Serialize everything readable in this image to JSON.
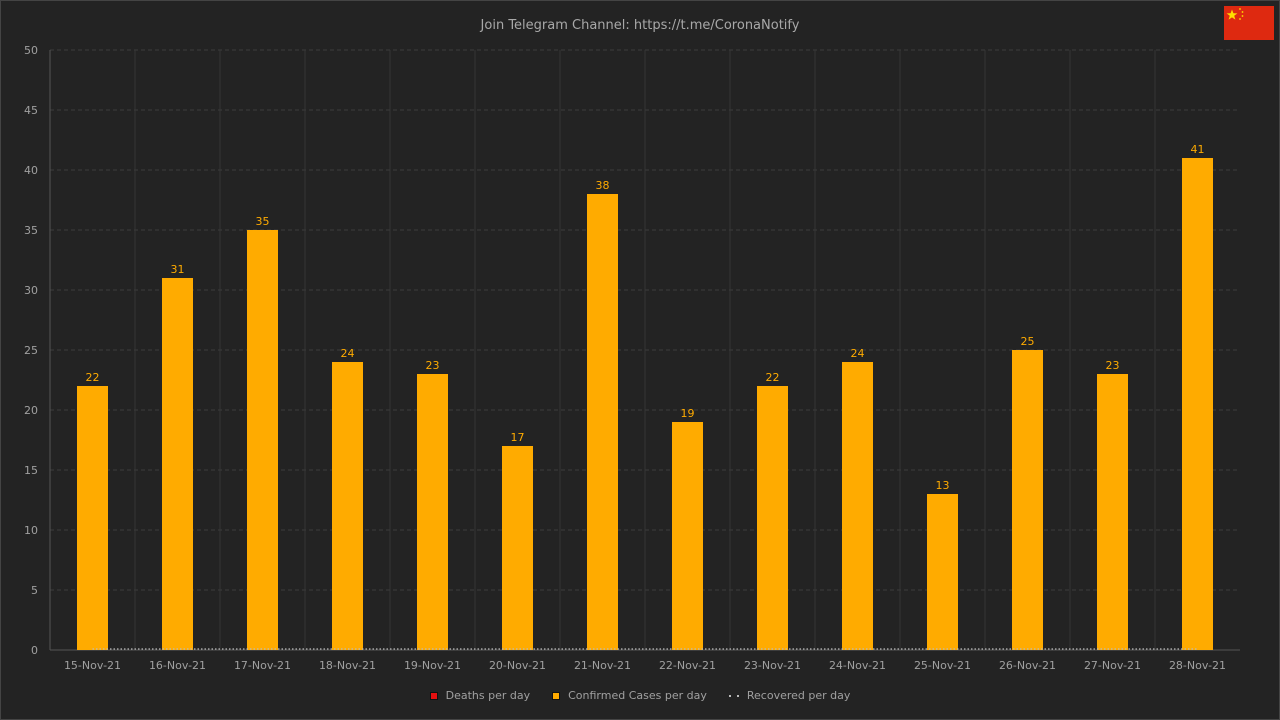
{
  "title": "Join Telegram Channel: https://t.me/CoronaNotify",
  "flag": {
    "name": "china-flag-icon",
    "colors": {
      "red": "#de2910",
      "star": "#ffde00"
    }
  },
  "colors": {
    "bar": "#ffab00",
    "label": "#ffab00",
    "axis_text": "#a0a0a0",
    "grid": "#3d3d3d",
    "deaths": "#e61010",
    "recovered": "#bbbbbb"
  },
  "legend": {
    "deaths": "Deaths per day",
    "confirmed": "Confirmed Cases per day",
    "recovered": "Recovered per day"
  },
  "chart_data": {
    "type": "bar",
    "title": "Join Telegram Channel: https://t.me/CoronaNotify",
    "categories": [
      "15-Nov-21",
      "16-Nov-21",
      "17-Nov-21",
      "18-Nov-21",
      "19-Nov-21",
      "20-Nov-21",
      "21-Nov-21",
      "22-Nov-21",
      "23-Nov-21",
      "24-Nov-21",
      "25-Nov-21",
      "26-Nov-21",
      "27-Nov-21",
      "28-Nov-21"
    ],
    "series": [
      {
        "name": "Deaths per day",
        "values": [
          0,
          0,
          0,
          0,
          0,
          0,
          0,
          0,
          0,
          0,
          0,
          0,
          0,
          0
        ]
      },
      {
        "name": "Confirmed Cases per day",
        "values": [
          22,
          31,
          35,
          24,
          23,
          17,
          38,
          19,
          22,
          24,
          13,
          25,
          23,
          41
        ]
      },
      {
        "name": "Recovered per day",
        "values": [
          0,
          0,
          0,
          0,
          0,
          0,
          0,
          0,
          0,
          0,
          0,
          0,
          0,
          0
        ]
      }
    ],
    "ylim": [
      0,
      50
    ],
    "yticks": [
      0,
      5,
      10,
      15,
      20,
      25,
      30,
      35,
      40,
      45,
      50
    ],
    "grid": true,
    "legend_position": "bottom"
  }
}
